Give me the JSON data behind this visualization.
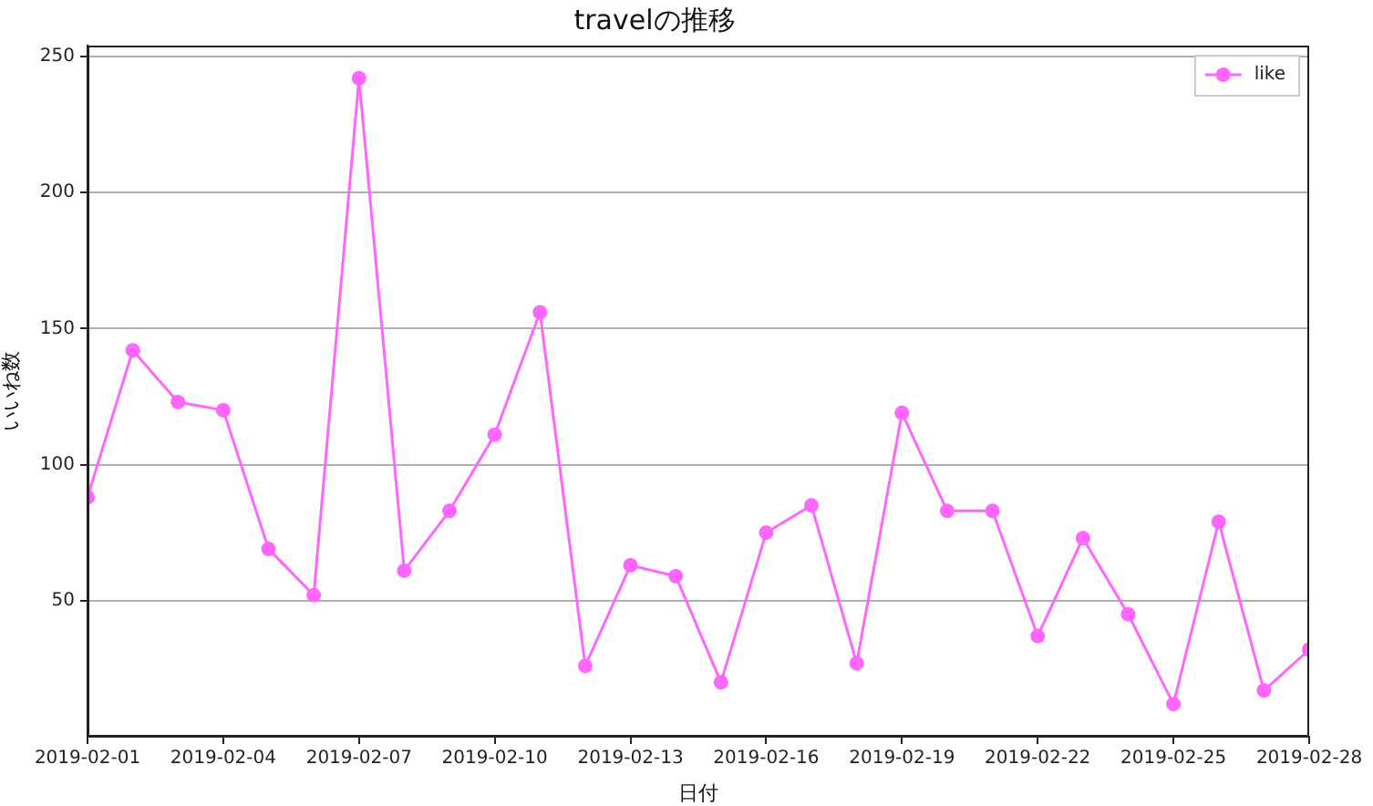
{
  "chart_data": {
    "type": "line",
    "title": "travelの推移",
    "xlabel": "日付",
    "ylabel": "いいね数",
    "x": [
      "2019-02-01",
      "2019-02-02",
      "2019-02-03",
      "2019-02-04",
      "2019-02-05",
      "2019-02-06",
      "2019-02-07",
      "2019-02-08",
      "2019-02-09",
      "2019-02-10",
      "2019-02-11",
      "2019-02-12",
      "2019-02-13",
      "2019-02-14",
      "2019-02-15",
      "2019-02-16",
      "2019-02-17",
      "2019-02-18",
      "2019-02-19",
      "2019-02-20",
      "2019-02-21",
      "2019-02-22",
      "2019-02-23",
      "2019-02-24",
      "2019-02-25",
      "2019-02-26",
      "2019-02-27",
      "2019-02-28"
    ],
    "series": [
      {
        "name": "like",
        "color": "#ff66ff",
        "values": [
          88,
          142,
          123,
          120,
          69,
          52,
          242,
          61,
          83,
          111,
          156,
          26,
          63,
          59,
          20,
          75,
          85,
          27,
          119,
          83,
          83,
          37,
          73,
          45,
          12,
          79,
          17,
          32
        ]
      }
    ],
    "xlim": [
      "2019-02-01",
      "2019-02-28"
    ],
    "ylim": [
      0,
      254
    ],
    "xticks": [
      "2019-02-01",
      "2019-02-04",
      "2019-02-07",
      "2019-02-10",
      "2019-02-13",
      "2019-02-16",
      "2019-02-19",
      "2019-02-22",
      "2019-02-25",
      "2019-02-28"
    ],
    "yticks": [
      50,
      100,
      150,
      200,
      250
    ],
    "grid": "y",
    "legend": "top right",
    "marker": "circle",
    "line_style": "solid"
  }
}
